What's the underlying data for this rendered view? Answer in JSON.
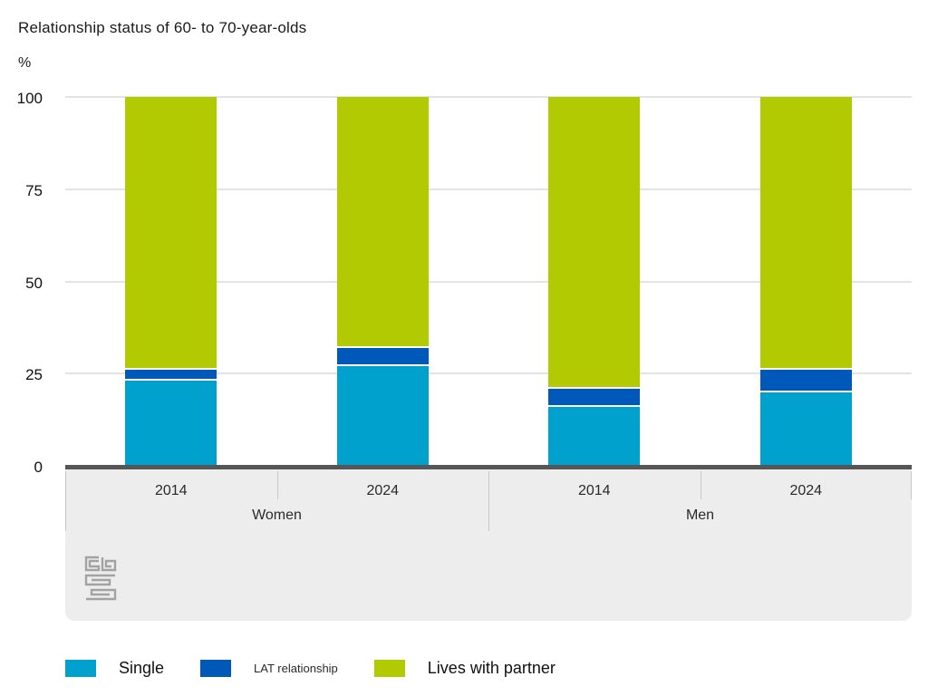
{
  "title": "Relationship status of 60- to 70-year-olds",
  "unit": "%",
  "chart_data": {
    "type": "bar",
    "stacked": true,
    "title": "Relationship status of 60- to 70-year-olds",
    "ylabel": "%",
    "ylim": [
      0,
      100
    ],
    "yticks": [
      0,
      25,
      50,
      75,
      100
    ],
    "grid": true,
    "legend_position": "bottom",
    "categories": [
      "Women 2014",
      "Women 2024",
      "Men 2014",
      "Men 2024"
    ],
    "x_axis": {
      "year_labels": [
        "2014",
        "2024",
        "2014",
        "2024"
      ],
      "group_labels": [
        "Women",
        "Men"
      ]
    },
    "series": [
      {
        "name": "Single",
        "color": "#00a1cd",
        "values": [
          23,
          27,
          16,
          20
        ]
      },
      {
        "name": "LAT relationship",
        "color": "#0058b8",
        "values": [
          3,
          5,
          5,
          6
        ]
      },
      {
        "name": "Lives with partner",
        "color": "#b2ca02",
        "values": [
          74,
          68,
          79,
          74
        ]
      }
    ]
  },
  "colors": {
    "gridline": "#e3e3e3",
    "baseline": "#565656",
    "axis_band": "#ededed",
    "divider": "#c9c9c9",
    "logo": "#a3a3a3"
  },
  "logo_name": "cbs-logo"
}
